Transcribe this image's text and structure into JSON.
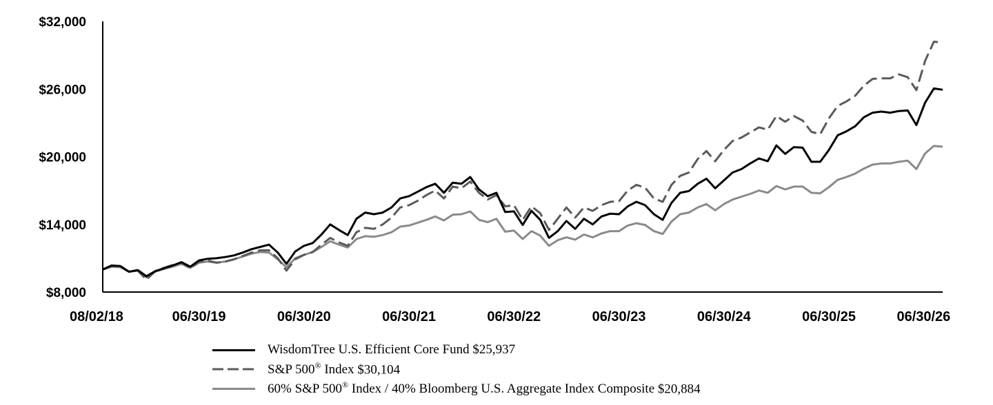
{
  "chart_data": {
    "type": "line",
    "y_ticks": [
      "$32,000",
      "$26,000",
      "$20,000",
      "$14,000",
      "$8,000"
    ],
    "y_tick_values": [
      32000,
      26000,
      20000,
      14000,
      8000
    ],
    "ylim": [
      8000,
      32000
    ],
    "x_ticks": [
      "08/02/18",
      "06/30/19",
      "06/30/20",
      "06/30/21",
      "06/30/22",
      "06/30/23",
      "06/30/24",
      "06/30/25",
      "06/30/26"
    ],
    "x_tick_positions": [
      0,
      11,
      23,
      35,
      47,
      59,
      71,
      83,
      95
    ],
    "series": [
      {
        "name": "WisdomTree U.S. Efficient Core Fund",
        "ending_value": "$25,937",
        "color": "#000000",
        "dash": "solid",
        "values": [
          10000,
          10350,
          10300,
          9800,
          9950,
          9400,
          9850,
          10100,
          10350,
          10650,
          10250,
          10800,
          10950,
          11000,
          11100,
          11250,
          11500,
          11800,
          12000,
          12200,
          11500,
          10500,
          11600,
          12100,
          12350,
          13100,
          14000,
          13500,
          13050,
          14500,
          15050,
          14900,
          15050,
          15500,
          16300,
          16500,
          16900,
          17300,
          17600,
          16800,
          17700,
          17600,
          18200,
          17100,
          16500,
          16800,
          15100,
          15150,
          13950,
          15200,
          14400,
          12800,
          13400,
          14300,
          13600,
          14500,
          14000,
          14700,
          14950,
          14900,
          15600,
          16000,
          15700,
          14900,
          14400,
          15900,
          16800,
          16950,
          17600,
          18050,
          17200,
          17900,
          18600,
          18900,
          19400,
          19850,
          19600,
          21000,
          20250,
          20850,
          20800,
          19550,
          19550,
          20600,
          21900,
          22250,
          22700,
          23500,
          23900,
          24000,
          23900,
          24050,
          24100,
          22800,
          24800,
          26050,
          25937
        ]
      },
      {
        "name": "S&P 500® Index",
        "ending_value": "$30,104",
        "color": "#5a5a5a",
        "dash": "dashed",
        "values": [
          10000,
          10300,
          10300,
          9800,
          9900,
          9100,
          9850,
          10150,
          10400,
          10600,
          10100,
          10700,
          10800,
          10600,
          10700,
          10900,
          11200,
          11500,
          11700,
          11700,
          11000,
          9900,
          10900,
          11300,
          11550,
          12200,
          12800,
          12400,
          12100,
          13300,
          13700,
          13600,
          14000,
          14600,
          15500,
          15700,
          16100,
          16600,
          17000,
          16300,
          17350,
          17200,
          17800,
          16800,
          16200,
          16600,
          15600,
          15700,
          14400,
          15600,
          15000,
          13500,
          14500,
          15500,
          14600,
          15500,
          15200,
          15700,
          16000,
          16050,
          17000,
          17500,
          17250,
          16300,
          16000,
          17500,
          18300,
          18600,
          19800,
          20500,
          19600,
          20600,
          21400,
          21700,
          22150,
          22600,
          22400,
          23600,
          23100,
          23600,
          23200,
          22200,
          22000,
          23400,
          24500,
          24900,
          25400,
          26300,
          26900,
          26950,
          26950,
          27300,
          27050,
          25900,
          28500,
          30200,
          30104
        ]
      },
      {
        "name": "60% S&P 500® Index / 40% Bloomberg U.S. Aggregate Index Composite",
        "ending_value": "$20,884",
        "color": "#8a8a8a",
        "dash": "solid",
        "values": [
          10000,
          10250,
          10200,
          9800,
          9900,
          9300,
          9800,
          10050,
          10250,
          10500,
          10150,
          10600,
          10700,
          10600,
          10700,
          10900,
          11150,
          11400,
          11550,
          11500,
          10900,
          10200,
          11000,
          11300,
          11550,
          12000,
          12500,
          12200,
          11950,
          12700,
          12950,
          12900,
          13050,
          13300,
          13800,
          13900,
          14150,
          14400,
          14700,
          14350,
          14850,
          14900,
          15150,
          14400,
          14200,
          14500,
          13350,
          13450,
          12700,
          13400,
          13000,
          12100,
          12600,
          12850,
          12650,
          13100,
          12850,
          13200,
          13400,
          13400,
          13900,
          14100,
          13950,
          13400,
          13150,
          14250,
          14900,
          15050,
          15500,
          15800,
          15250,
          15800,
          16200,
          16450,
          16700,
          17000,
          16800,
          17400,
          17100,
          17350,
          17350,
          16800,
          16750,
          17300,
          17950,
          18200,
          18500,
          18950,
          19300,
          19400,
          19400,
          19550,
          19650,
          18900,
          20300,
          20950,
          20884
        ]
      }
    ],
    "grid": false,
    "legend_placement": "bottom"
  }
}
